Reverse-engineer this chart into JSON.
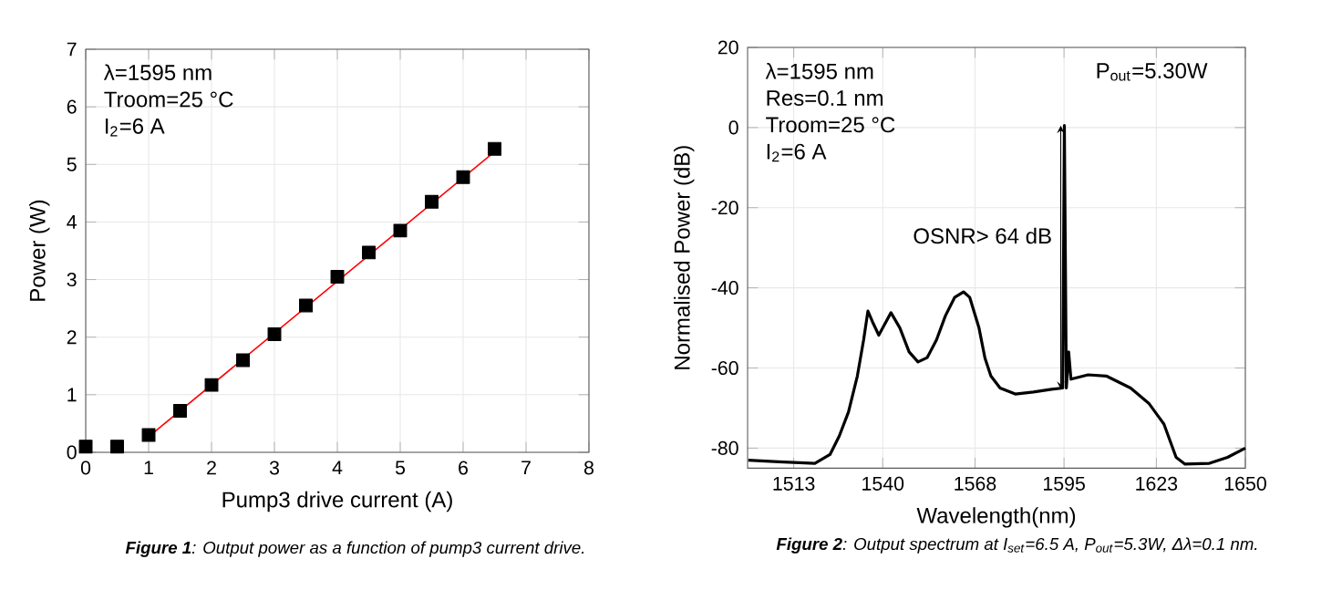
{
  "chart_data": [
    {
      "type": "scatter",
      "xlabel": "Pump3 drive current (A)",
      "ylabel": "Power  (W)",
      "xlim": [
        0,
        8
      ],
      "xticks": [
        0,
        1,
        2,
        3,
        4,
        5,
        6,
        7,
        8
      ],
      "ylim": [
        0,
        7
      ],
      "yticks": [
        0,
        1,
        2,
        3,
        4,
        5,
        6,
        7
      ],
      "grid": true,
      "series": [
        {
          "marker": "square",
          "color": "#000000",
          "x": [
            0,
            0.5,
            1,
            1.5,
            2,
            2.5,
            3,
            3.5,
            4,
            4.5,
            5,
            5.5,
            6,
            6.5
          ],
          "values": [
            0.1,
            0.1,
            0.3,
            0.72,
            1.17,
            1.6,
            2.05,
            2.55,
            3.05,
            3.47,
            3.85,
            4.35,
            4.78,
            5.27
          ]
        },
        {
          "type": "line",
          "marker": "none",
          "color": "#ff0000",
          "x": [
            1,
            6.5
          ],
          "values": [
            0.27,
            5.22
          ]
        }
      ],
      "annotations": [
        "λ=1595 nm",
        "Troom=25 °C",
        "I$_{2}$=6 A",
        "**Figure 1**: Output power as a function of pump3 current drive."
      ]
    },
    {
      "type": "line",
      "xlabel": "Wavelength(nm)",
      "ylabel": "Normalised Power (dB)",
      "xlim": [
        1499,
        1650
      ],
      "xticks": [
        1513,
        1540,
        1568,
        1595,
        1623,
        1650
      ],
      "ylim": [
        -85,
        20
      ],
      "yticks": [
        -80,
        -60,
        -40,
        -20,
        0,
        20
      ],
      "grid": true,
      "series": [
        {
          "marker": "none",
          "color": "#000000",
          "x": [
            1499.2,
            1508.4,
            1519.4,
            1524,
            1526.8,
            1529.6,
            1532.3,
            1534.2,
            1535.5,
            1536.9,
            1538.8,
            1540,
            1542.5,
            1545.2,
            1548,
            1550.7,
            1553.5,
            1556.3,
            1559,
            1561.8,
            1564.5,
            1566.4,
            1569.2,
            1571,
            1572.8,
            1575.6,
            1580.2,
            1585.7,
            1591.2,
            1594.6,
            1595.1,
            1595.7,
            1596.4,
            1597.1,
            1602.3,
            1607.8,
            1615.2,
            1620.7,
            1625.3,
            1629,
            1631.7,
            1639.1,
            1644.6,
            1650
          ],
          "values": [
            -83,
            -83.4,
            -83.8,
            -81.6,
            -77,
            -71,
            -62,
            -53,
            -45.8,
            -48.5,
            -51.8,
            -50,
            -46.2,
            -50,
            -56,
            -58.5,
            -57.4,
            -53,
            -47,
            -42.4,
            -41,
            -42.4,
            -50,
            -57.5,
            -62,
            -65,
            -66.5,
            -66,
            -65.3,
            -65,
            0.5,
            -65,
            -56,
            -62.8,
            -61.7,
            -62,
            -65,
            -68.8,
            -74,
            -82.3,
            -84,
            -83.8,
            -82.3,
            -80
          ]
        }
      ],
      "annotations": [
        "λ=1595 nm",
        "Res=0.1 nm",
        "Troom=25 °C",
        "I$_{2}$=6 A",
        "P$_{out}$=5.30W",
        {
          "text": "OSNR> 64 dB",
          "x": 1594,
          "y": -27
        },
        "**Figure 2**: Output spectrum at I$_{set}$=6.5 A, P$_{out}$=5.3W, Δλ=0.1 nm."
      ]
    }
  ]
}
